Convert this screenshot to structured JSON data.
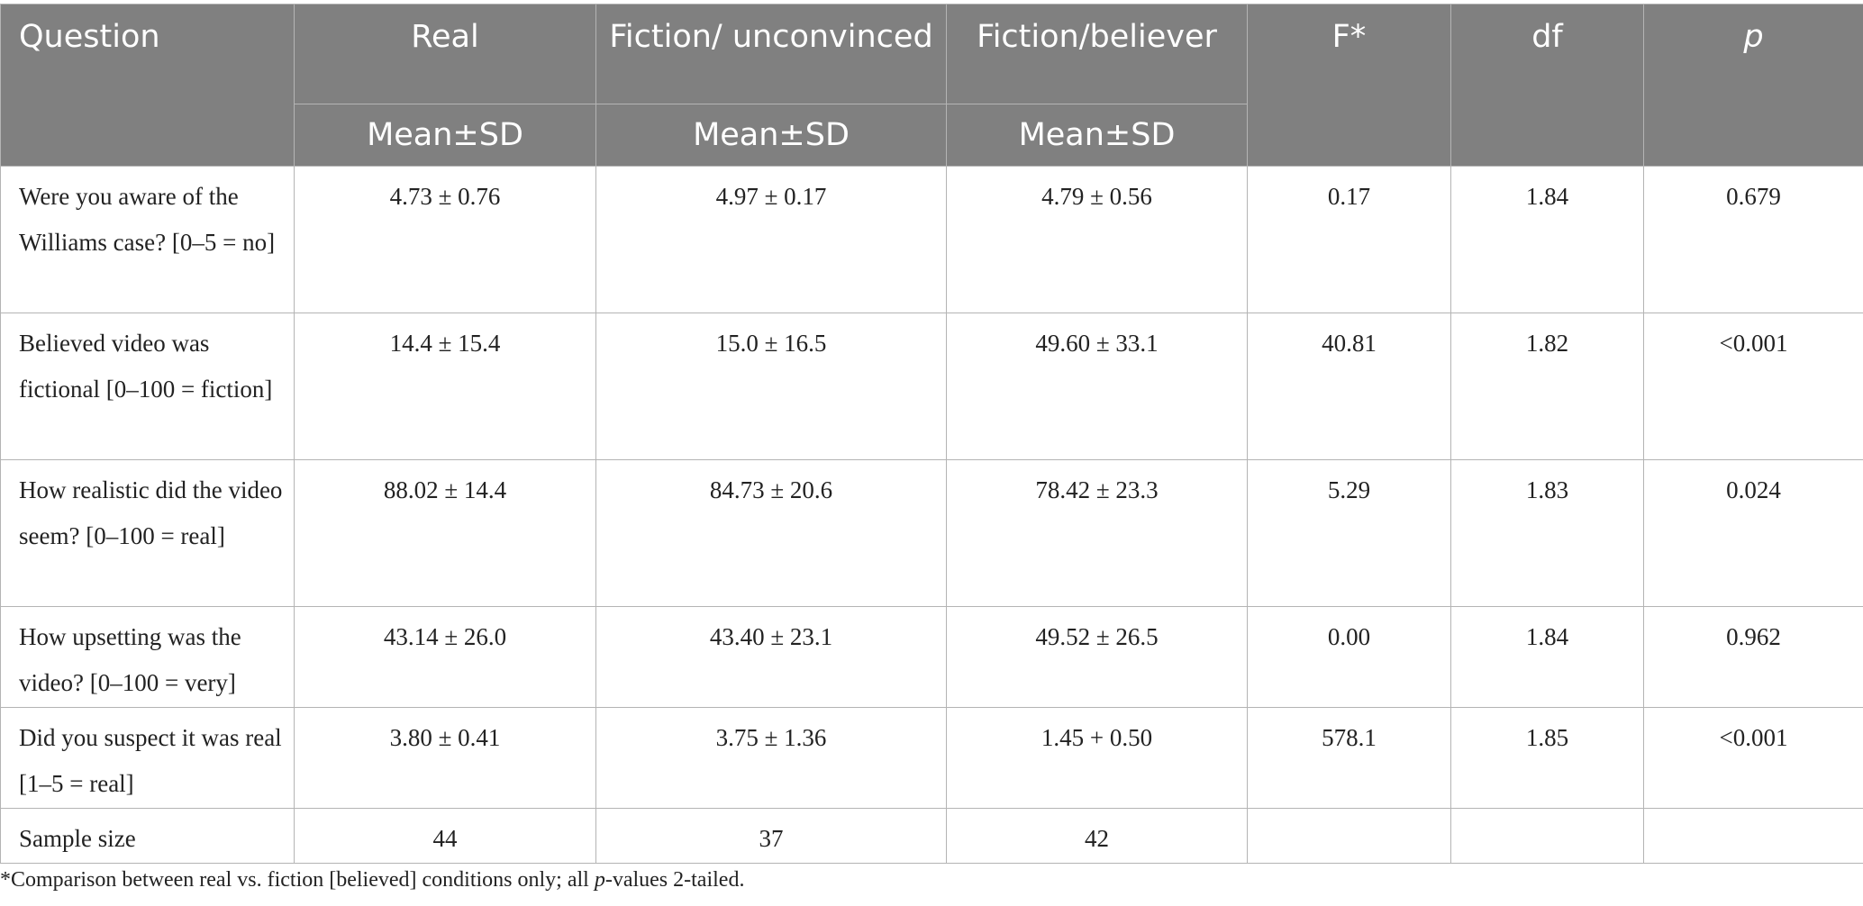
{
  "table": {
    "header": {
      "question": "Question",
      "real": "Real",
      "fiction_unconvinced": "Fiction/ unconvinced",
      "fiction_believer": "Fiction/believer",
      "f": "F*",
      "df": "df",
      "p": "p",
      "sub_real": "Mean±SD",
      "sub_unconvinced": "Mean±SD",
      "sub_believer": "Mean±SD"
    },
    "rows": [
      {
        "question": "Were you aware of the Williams case? [0–5 = no]",
        "real": "4.73 ± 0.76",
        "unconvinced": "4.97 ± 0.17",
        "believer": "4.79 ± 0.56",
        "f": "0.17",
        "df": "1.84",
        "p": "0.679"
      },
      {
        "question": "Believed video was fictional [0–100 = fiction]",
        "real": "14.4 ± 15.4",
        "unconvinced": "15.0 ± 16.5",
        "believer": "49.60 ± 33.1",
        "f": "40.81",
        "df": "1.82",
        "p": "<0.001"
      },
      {
        "question": "How realistic did the video seem? [0–100 = real]",
        "real": "88.02 ± 14.4",
        "unconvinced": "84.73 ± 20.6",
        "believer": "78.42 ± 23.3",
        "f": "5.29",
        "df": "1.83",
        "p": "0.024"
      },
      {
        "question": "How upsetting was the video? [0–100 = very]",
        "real": "43.14 ± 26.0",
        "unconvinced": "43.40 ± 23.1",
        "believer": "49.52 ± 26.5",
        "f": "0.00",
        "df": "1.84",
        "p": "0.962"
      },
      {
        "question": "Did you suspect it was real [1–5 = real]",
        "real": "3.80 ± 0.41",
        "unconvinced": "3.75 ± 1.36",
        "believer": "1.45 + 0.50",
        "f": "578.1",
        "df": "1.85",
        "p": "<0.001"
      },
      {
        "question": "Sample size",
        "real": "44",
        "unconvinced": "37",
        "believer": "42",
        "f": "",
        "df": "",
        "p": ""
      }
    ]
  },
  "footnote": {
    "prefix": "*Comparison between real vs. fiction [believed] conditions only; all ",
    "p_italic": "p",
    "suffix": "-values 2-tailed."
  }
}
